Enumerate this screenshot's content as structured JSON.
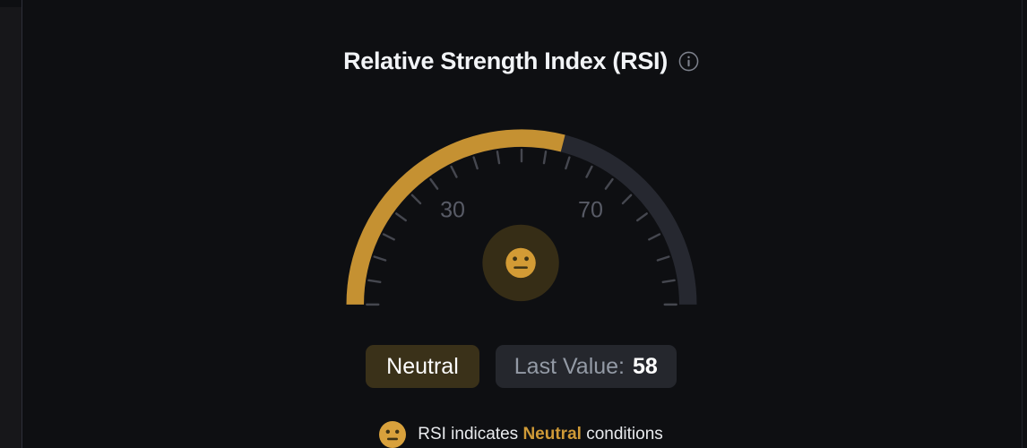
{
  "header": {
    "title": "Relative Strength Index (RSI)",
    "info_icon": "info-icon"
  },
  "gauge": {
    "min": 0,
    "max": 100,
    "value": 58,
    "tick_step": 5,
    "axis_labels": [
      "30",
      "70"
    ],
    "axis_label_values": [
      30,
      70
    ],
    "center_face": "neutral-face",
    "colors": {
      "arc_fill": "#c59132",
      "track": "#262830",
      "tick": "#45474f",
      "axis_label": "#585b66",
      "face_bg": "#362d16",
      "face": "#d39b35",
      "face_features": "#3e3315"
    }
  },
  "status_badge": {
    "label": "Neutral",
    "bg": "#3a3119"
  },
  "last_value_badge": {
    "label": "Last Value:",
    "value": "58",
    "bg": "#25272d"
  },
  "legend": {
    "emoji": "neutral-face",
    "emoji_color": "#d8a13c",
    "prefix": "RSI indicates ",
    "highlight": "Neutral",
    "suffix": " conditions",
    "highlight_color": "#cf9a37"
  },
  "chart_data": {
    "type": "gauge",
    "title": "Relative Strength Index (RSI)",
    "min": 0,
    "max": 100,
    "value": 58,
    "tick_interval": 5,
    "axis_tick_labels": [
      30,
      70
    ],
    "status": "Neutral",
    "last_value": 58,
    "fill_color": "#c59132",
    "track_color": "#262830",
    "legend_text": "RSI indicates Neutral conditions"
  }
}
